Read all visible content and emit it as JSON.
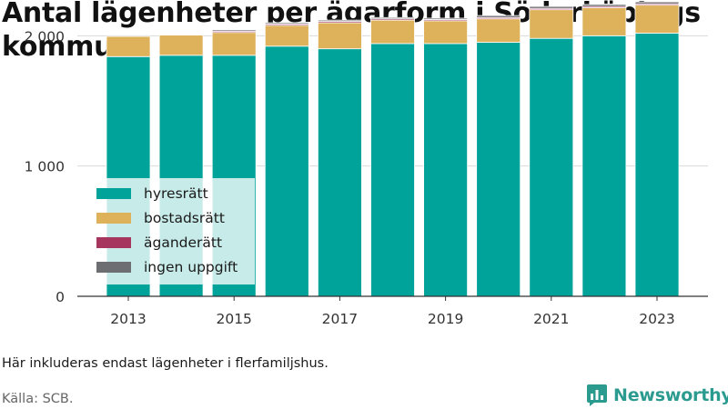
{
  "title": "Antal lägenheter per ägarform i Söderköpings kommun",
  "note": "Här inkluderas endast lägenheter i flerfamiljshus.",
  "source": "Källa: SCB.",
  "brand": "Newsworthy",
  "colors": {
    "hyresratt": "#00a39a",
    "bostadsratt": "#ddb25a",
    "aganderatt": "#a6365e",
    "ingen_uppgift": "#6d6e71",
    "brand": "#2b9a8f"
  },
  "chart_data": {
    "type": "bar",
    "stacked": true,
    "categories": [
      "2013",
      "2014",
      "2015",
      "2016",
      "2017",
      "2018",
      "2019",
      "2020",
      "2021",
      "2022",
      "2023"
    ],
    "x_tick_labels": [
      "2013",
      "2015",
      "2017",
      "2019",
      "2021",
      "2023"
    ],
    "y_tick_labels": [
      "0",
      "1 000",
      "2 000"
    ],
    "ylim": [
      0,
      2100
    ],
    "grid": "horizontal",
    "legend_position": "left-inside",
    "series": [
      {
        "name": "hyresrätt",
        "color": "#00a39a",
        "values": [
          1840,
          1850,
          1850,
          1920,
          1900,
          1940,
          1940,
          1950,
          1980,
          2000,
          2020
        ]
      },
      {
        "name": "bostadsrätt",
        "color": "#ddb25a",
        "values": [
          155,
          155,
          175,
          160,
          200,
          180,
          175,
          180,
          220,
          215,
          215
        ]
      },
      {
        "name": "äganderätt",
        "color": "#a6365e",
        "values": [
          0,
          0,
          10,
          10,
          10,
          10,
          10,
          10,
          10,
          10,
          10
        ]
      },
      {
        "name": "ingen uppgift",
        "color": "#6d6e71",
        "values": [
          0,
          5,
          10,
          10,
          10,
          10,
          10,
          15,
          15,
          15,
          15
        ]
      }
    ]
  }
}
